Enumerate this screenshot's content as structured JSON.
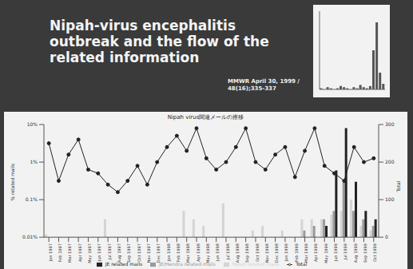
{
  "slide": {
    "title": "Nipah-virus encephalitis outbreak and the flow of the related information",
    "citation": "MMWR April 30, 1999 / 48(16);335-337"
  },
  "chart_data": [
    {
      "type": "bar",
      "title": "Nipah virus関連メールの推移",
      "ylabel": "% related mails",
      "y2label": "Total",
      "log": "y",
      "grid": false,
      "legend": "bottom",
      "categories": [
        "Jan 1997",
        "Feb 1997",
        "Mar 1997",
        "Apr 1997",
        "May 1997",
        "Jun 1997",
        "Jul 1997",
        "Aug 1997",
        "Sep 1997",
        "Oct 1997",
        "Nov 1997",
        "Dec 1997",
        "Jan 1998",
        "Feb 1998",
        "Mar 1998",
        "Apr 1998",
        "May 1998",
        "Jun 1998",
        "Jul 1998",
        "Aug 1998",
        "Sep 1998",
        "Oct 1998",
        "Nov 1998",
        "Dec 1998",
        "Jan 1999",
        "Feb 1999",
        "Mar 1999",
        "Apr 1999",
        "May 1999",
        "Jun 1999",
        "Jul 1999",
        "Aug 1999",
        "Sep 1999",
        "Oct 1999"
      ],
      "ylim": [
        0.01,
        10
      ],
      "yticks": [
        {
          "value": 0.01,
          "label": "0.01%"
        },
        {
          "value": 0.1,
          "label": "0.1%"
        },
        {
          "value": 1,
          "label": "1%"
        },
        {
          "value": 10,
          "label": "10%"
        }
      ],
      "y2lim": [
        0,
        300
      ],
      "y2ticks": [
        0,
        100,
        200,
        300
      ],
      "series": [
        {
          "name": "Nipah related mails",
          "type": "bar",
          "color": "#d4d4d4",
          "values": [
            0.012,
            null,
            null,
            null,
            null,
            null,
            0.03,
            null,
            null,
            null,
            null,
            null,
            null,
            null,
            0.05,
            0.03,
            0.02,
            null,
            0.08,
            null,
            null,
            0.015,
            0.02,
            null,
            0.015,
            null,
            0.03,
            0.03,
            0.03,
            0.04,
            0.05,
            0.1,
            0.02,
            0.015
          ]
        },
        {
          "name": "JE/Hendra related mails",
          "type": "bar",
          "color": "#9a9a9a",
          "values": [
            null,
            null,
            null,
            null,
            null,
            null,
            null,
            null,
            null,
            null,
            null,
            null,
            null,
            null,
            null,
            null,
            null,
            null,
            null,
            null,
            null,
            null,
            null,
            null,
            null,
            null,
            0.015,
            0.02,
            0.03,
            0.05,
            0.3,
            0.05,
            0.03,
            0.02
          ]
        },
        {
          "name": "JE related mails",
          "type": "bar",
          "color": "#222222",
          "values": [
            null,
            null,
            null,
            null,
            null,
            null,
            null,
            null,
            null,
            null,
            null,
            null,
            null,
            null,
            null,
            null,
            null,
            null,
            null,
            null,
            null,
            null,
            null,
            null,
            null,
            null,
            null,
            null,
            0.02,
            0.6,
            8,
            0.3,
            0.05,
            0.03
          ]
        },
        {
          "name": "Total",
          "type": "line",
          "axis": "y2",
          "color": "#222222",
          "marker": "circle",
          "values": [
            250,
            150,
            220,
            260,
            180,
            170,
            140,
            120,
            150,
            190,
            140,
            200,
            240,
            270,
            230,
            290,
            210,
            180,
            200,
            240,
            290,
            200,
            180,
            220,
            240,
            160,
            230,
            290,
            190,
            170,
            150,
            240,
            200,
            210
          ]
        }
      ]
    },
    {
      "type": "bar",
      "tick_labels": false,
      "color": "#555555",
      "ylim": [
        0,
        70
      ],
      "values": [
        1,
        0,
        2,
        1,
        0,
        1,
        3,
        2,
        1,
        0,
        2,
        1,
        4,
        2,
        1,
        3,
        35,
        60,
        15,
        5
      ]
    }
  ]
}
